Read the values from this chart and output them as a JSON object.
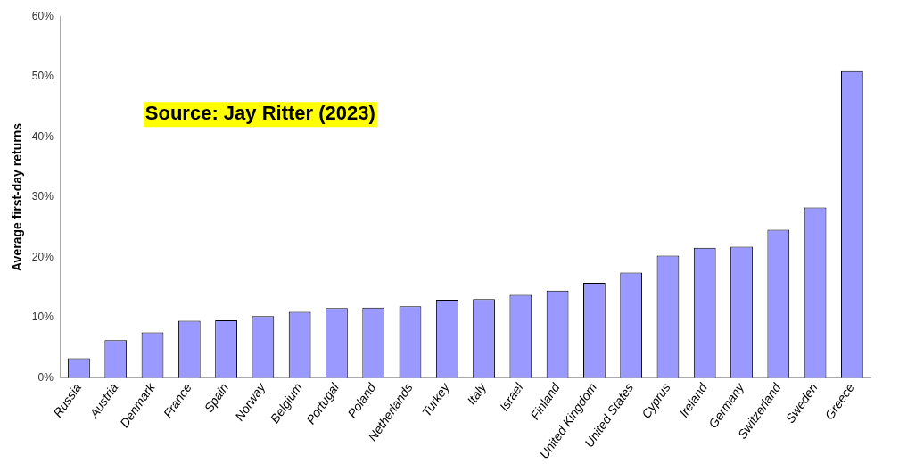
{
  "chart_data": {
    "type": "bar",
    "ylabel": "Average first-day returns",
    "categories": [
      "Russia",
      "Austria",
      "Denmark",
      "France",
      "Spain",
      "Norway",
      "Belgium",
      "Portugal",
      "Poland",
      "Netherlands",
      "Turkey",
      "Italy",
      "Israel",
      "Finland",
      "United Kingdom",
      "United States",
      "Cyprus",
      "Ireland",
      "Germany",
      "Switzerland",
      "Sweden",
      "Greece"
    ],
    "values": [
      3.3,
      6.3,
      7.6,
      9.5,
      9.6,
      10.3,
      11.0,
      11.6,
      11.7,
      11.9,
      13.0,
      13.1,
      13.8,
      14.5,
      15.8,
      17.5,
      20.3,
      21.6,
      21.8,
      24.6,
      28.3,
      50.9
    ],
    "color": "#9999ff",
    "ylim": [
      0,
      60
    ],
    "yticks": [
      {
        "value": 0,
        "label": "0%"
      },
      {
        "value": 10,
        "label": "10%"
      },
      {
        "value": 20,
        "label": "20%"
      },
      {
        "value": 30,
        "label": "30%"
      },
      {
        "value": 40,
        "label": "40%"
      },
      {
        "value": 50,
        "label": "50%"
      },
      {
        "value": 60,
        "label": "60%"
      }
    ],
    "grid": false,
    "annotations": [
      "Source: Jay Ritter (2023)"
    ]
  }
}
